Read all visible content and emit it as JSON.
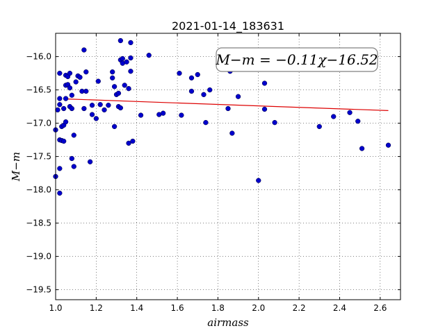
{
  "chart_data": {
    "type": "scatter",
    "title": "2021-01-14_183631",
    "xlabel": "airmass",
    "ylabel": "M−m",
    "xlim": [
      1.0,
      2.7
    ],
    "ylim": [
      -19.65,
      -15.65
    ],
    "y_inverted": true,
    "grid": true,
    "xticks": [
      1.0,
      1.2,
      1.4,
      1.6,
      1.8,
      2.0,
      2.2,
      2.4,
      2.6
    ],
    "xtick_labels": [
      "1.0",
      "1.2",
      "1.4",
      "1.6",
      "1.8",
      "2.0",
      "2.2",
      "2.4",
      "2.6"
    ],
    "yticks": [
      -16.0,
      -16.5,
      -17.0,
      -17.5,
      -18.0,
      -18.5,
      -19.0,
      -19.5
    ],
    "ytick_labels": [
      "−16.0",
      "−16.5",
      "−17.0",
      "−17.5",
      "−18.0",
      "−18.5",
      "−19.0",
      "−19.5"
    ],
    "annotation": "M−m = −0.11χ−16.52",
    "point_color": "#0000cc",
    "fit_color": "#dd0000",
    "fit": {
      "slope": -0.11,
      "intercept": -16.52,
      "x": [
        1.05,
        2.64
      ]
    },
    "points": [
      [
        1.0,
        -17.1
      ],
      [
        1.0,
        -17.8
      ],
      [
        1.01,
        -16.8
      ],
      [
        1.02,
        -16.25
      ],
      [
        1.02,
        -16.63
      ],
      [
        1.02,
        -16.72
      ],
      [
        1.02,
        -17.25
      ],
      [
        1.02,
        -17.68
      ],
      [
        1.02,
        -18.05
      ],
      [
        1.03,
        -17.05
      ],
      [
        1.03,
        -17.26
      ],
      [
        1.04,
        -16.78
      ],
      [
        1.04,
        -17.03
      ],
      [
        1.04,
        -17.27
      ],
      [
        1.05,
        -16.43
      ],
      [
        1.05,
        -16.63
      ],
      [
        1.05,
        -16.98
      ],
      [
        1.05,
        -16.28
      ],
      [
        1.06,
        -16.3
      ],
      [
        1.06,
        -16.42
      ],
      [
        1.07,
        -16.25
      ],
      [
        1.07,
        -16.47
      ],
      [
        1.07,
        -16.75
      ],
      [
        1.08,
        -16.78
      ],
      [
        1.08,
        -16.58
      ],
      [
        1.08,
        -17.53
      ],
      [
        1.09,
        -17.65
      ],
      [
        1.09,
        -17.18
      ],
      [
        1.1,
        -16.38
      ],
      [
        1.11,
        -16.29
      ],
      [
        1.12,
        -16.31
      ],
      [
        1.13,
        -16.52
      ],
      [
        1.14,
        -16.78
      ],
      [
        1.14,
        -15.9
      ],
      [
        1.15,
        -16.23
      ],
      [
        1.15,
        -16.52
      ],
      [
        1.17,
        -17.58
      ],
      [
        1.18,
        -16.73
      ],
      [
        1.18,
        -16.87
      ],
      [
        1.2,
        -16.93
      ],
      [
        1.21,
        -16.37
      ],
      [
        1.22,
        -16.72
      ],
      [
        1.24,
        -16.8
      ],
      [
        1.26,
        -16.73
      ],
      [
        1.28,
        -16.23
      ],
      [
        1.28,
        -16.32
      ],
      [
        1.29,
        -16.45
      ],
      [
        1.29,
        -17.05
      ],
      [
        1.3,
        -16.57
      ],
      [
        1.31,
        -16.55
      ],
      [
        1.31,
        -16.75
      ],
      [
        1.32,
        -16.77
      ],
      [
        1.32,
        -16.05
      ],
      [
        1.32,
        -15.76
      ],
      [
        1.33,
        -16.03
      ],
      [
        1.33,
        -16.1
      ],
      [
        1.34,
        -16.43
      ],
      [
        1.35,
        -16.08
      ],
      [
        1.36,
        -16.48
      ],
      [
        1.36,
        -17.3
      ],
      [
        1.37,
        -16.02
      ],
      [
        1.37,
        -16.22
      ],
      [
        1.37,
        -15.79
      ],
      [
        1.38,
        -17.27
      ],
      [
        1.42,
        -16.88
      ],
      [
        1.46,
        -15.98
      ],
      [
        1.51,
        -16.87
      ],
      [
        1.53,
        -16.85
      ],
      [
        1.61,
        -16.25
      ],
      [
        1.62,
        -16.88
      ],
      [
        1.67,
        -16.52
      ],
      [
        1.67,
        -16.32
      ],
      [
        1.7,
        -16.27
      ],
      [
        1.73,
        -16.57
      ],
      [
        1.74,
        -16.99
      ],
      [
        1.76,
        -16.5
      ],
      [
        1.85,
        -16.78
      ],
      [
        1.86,
        -16.22
      ],
      [
        1.87,
        -17.15
      ],
      [
        1.9,
        -16.6
      ],
      [
        2.0,
        -17.86
      ],
      [
        2.03,
        -16.4
      ],
      [
        2.03,
        -16.79
      ],
      [
        2.08,
        -16.99
      ],
      [
        2.3,
        -17.05
      ],
      [
        2.37,
        -16.9
      ],
      [
        2.45,
        -16.84
      ],
      [
        2.49,
        -16.97
      ],
      [
        2.51,
        -17.38
      ],
      [
        2.64,
        -17.33
      ]
    ]
  }
}
